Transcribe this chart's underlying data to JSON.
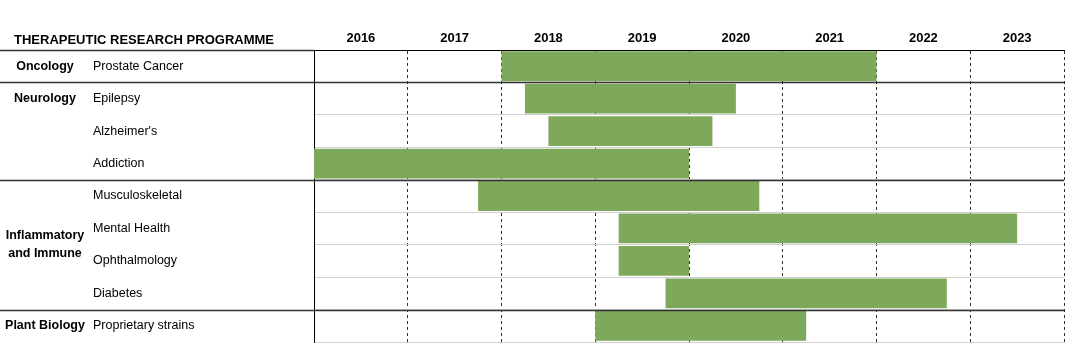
{
  "chart_data": {
    "type": "bar",
    "orientation": "horizontal",
    "ylabel": "THERAPEUTIC RESEARCH PROGRAMME",
    "categories": [
      "Prostate Cancer",
      "Epilepsy",
      "Alzheimer's",
      "Addiction",
      "Musculoskeletal",
      "Mental Health",
      "Ophthalmology",
      "Diabetes",
      "Proprietary strains"
    ],
    "base": [
      2018,
      2018.25,
      2018.5,
      2016,
      2017.75,
      2019.25,
      2019.25,
      2019.75,
      2019
    ],
    "values": [
      4,
      2.25,
      1.75,
      4,
      3,
      4.25,
      0.75,
      3,
      2.25
    ],
    "color": "#7fa95a",
    "xlim": [
      2016,
      2024
    ],
    "xticks": [
      {
        "value": 2016,
        "label": null
      },
      {
        "value": 2016.5,
        "label": "2016"
      },
      {
        "value": 2017,
        "label": null
      },
      {
        "value": 2017.5,
        "label": "2017"
      },
      {
        "value": 2018,
        "label": null
      },
      {
        "value": 2018.5,
        "label": "2018"
      },
      {
        "value": 2019,
        "label": null
      },
      {
        "value": 2019.5,
        "label": "2019"
      },
      {
        "value": 2020,
        "label": null
      },
      {
        "value": 2020.5,
        "label": "2020"
      },
      {
        "value": 2021,
        "label": null
      },
      {
        "value": 2021.5,
        "label": "2021"
      },
      {
        "value": 2022,
        "label": null
      },
      {
        "value": 2022.5,
        "label": "2022"
      },
      {
        "value": 2023,
        "label": null
      },
      {
        "value": 2023.5,
        "label": "2023"
      },
      {
        "value": 2024,
        "label": null
      }
    ],
    "grid": true,
    "annotations": [
      "Oncology",
      "Neurology",
      "Inflammatory\nand Immune",
      "Plant Biology"
    ]
  }
}
